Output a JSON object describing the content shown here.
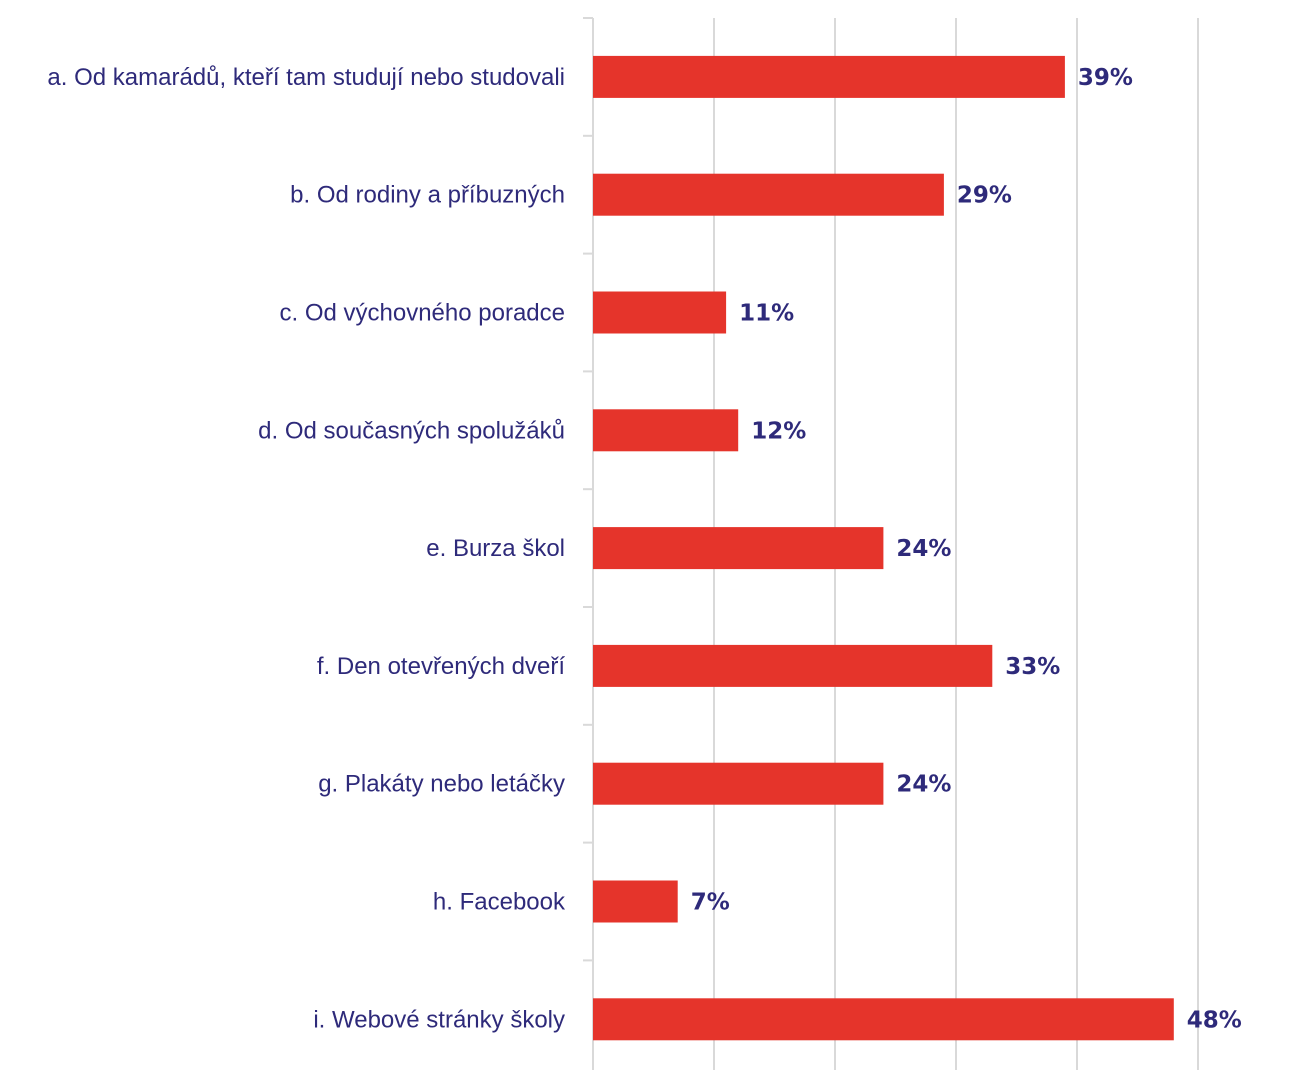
{
  "chart_data": {
    "type": "bar",
    "orientation": "horizontal",
    "categories": [
      "a. Od kamarádů, kteří tam studují nebo studovali",
      "b. Od rodiny a příbuzných",
      "c. Od výchovného poradce",
      "d. Od současných spolužáků",
      "e. Burza škol",
      "f. Den otevřených dveří",
      "g. Plakáty nebo letáčky",
      "h. Facebook",
      "i. Webové stránky školy"
    ],
    "values": [
      39,
      29,
      11,
      12,
      24,
      33,
      24,
      7,
      48
    ],
    "value_labels": [
      "39%",
      "29%",
      "11%",
      "12%",
      "24%",
      "33%",
      "24%",
      "7%",
      "48%"
    ],
    "xlim": [
      0,
      50
    ],
    "grid_step": 10,
    "grid": true,
    "legend": "none",
    "colors": {
      "bar": "#e5342b",
      "text": "#2e2a7a",
      "grid": "#d9d9d9"
    }
  }
}
